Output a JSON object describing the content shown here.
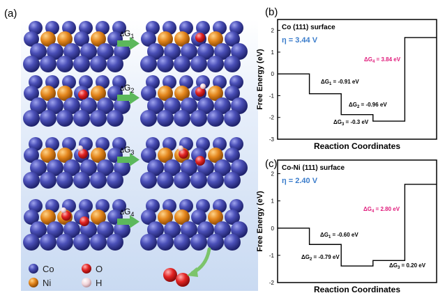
{
  "panel_a": {
    "label": "(a)",
    "steps": [
      {
        "sym": "ΔG",
        "sub": "1"
      },
      {
        "sym": "ΔG",
        "sub": "2"
      },
      {
        "sym": "ΔG",
        "sub": "3"
      },
      {
        "sym": "ΔG",
        "sub": "4"
      }
    ],
    "legend": [
      {
        "label": "Co",
        "color": "#3b3fa6"
      },
      {
        "label": "O",
        "color": "#e02626"
      },
      {
        "label": "Ni",
        "color": "#e08a1e"
      },
      {
        "label": "H",
        "color": "#f2d6dc"
      }
    ],
    "colors": {
      "co": "#3b3fa6",
      "ni": "#e08a1e",
      "o": "#e02626",
      "h": "#f4dfe3",
      "arrow": "#5cb85c",
      "bg": "#dfe9f7"
    }
  },
  "chart_data": [
    {
      "type": "line",
      "panel": "(b)",
      "title": "Co (111)  surface",
      "xlabel": "Reaction Coordinates",
      "ylabel": "Free Energy (eV)",
      "ylim": [
        -3,
        2.5
      ],
      "yticks": [
        "2",
        "1",
        "0",
        "-1",
        "-2",
        "-3"
      ],
      "eta": "η = 3.44 V",
      "levels": [
        0,
        -0.91,
        -1.87,
        -2.17,
        1.67
      ],
      "annotations": [
        {
          "sym": "ΔG",
          "sub": "1",
          "text": " = -0.91 eV",
          "color": "#000000"
        },
        {
          "sym": "ΔG",
          "sub": "2",
          "text": " = -0.96 eV",
          "color": "#000000"
        },
        {
          "sym": "ΔG",
          "sub": "3",
          "text": " = -0.3 eV",
          "color": "#000000"
        },
        {
          "sym": "ΔG",
          "sub": "4",
          "text": " = 3.84 eV",
          "color": "#e0197a"
        }
      ],
      "eta_color": "#3a7ccb"
    },
    {
      "type": "line",
      "panel": "(c)",
      "title": "Co-Ni (111)  surface",
      "xlabel": "Reaction Coordinates",
      "ylabel": "Free Energy (eV)",
      "ylim": [
        -2,
        2.5
      ],
      "yticks": [
        "2",
        "1",
        "0",
        "-1",
        "-2"
      ],
      "eta": "η = 2.40 V",
      "levels": [
        0,
        -0.6,
        -1.39,
        -1.19,
        1.61
      ],
      "annotations": [
        {
          "sym": "ΔG",
          "sub": "1",
          "text": " = -0.60 eV",
          "color": "#000000"
        },
        {
          "sym": "ΔG",
          "sub": "2",
          "text": " = -0.79 eV",
          "color": "#000000"
        },
        {
          "sym": "ΔG",
          "sub": "3",
          "text": " = 0.20 eV",
          "color": "#000000"
        },
        {
          "sym": "ΔG",
          "sub": "4",
          "text": " = 2.80 eV",
          "color": "#e0197a"
        }
      ],
      "eta_color": "#3a7ccb"
    }
  ]
}
